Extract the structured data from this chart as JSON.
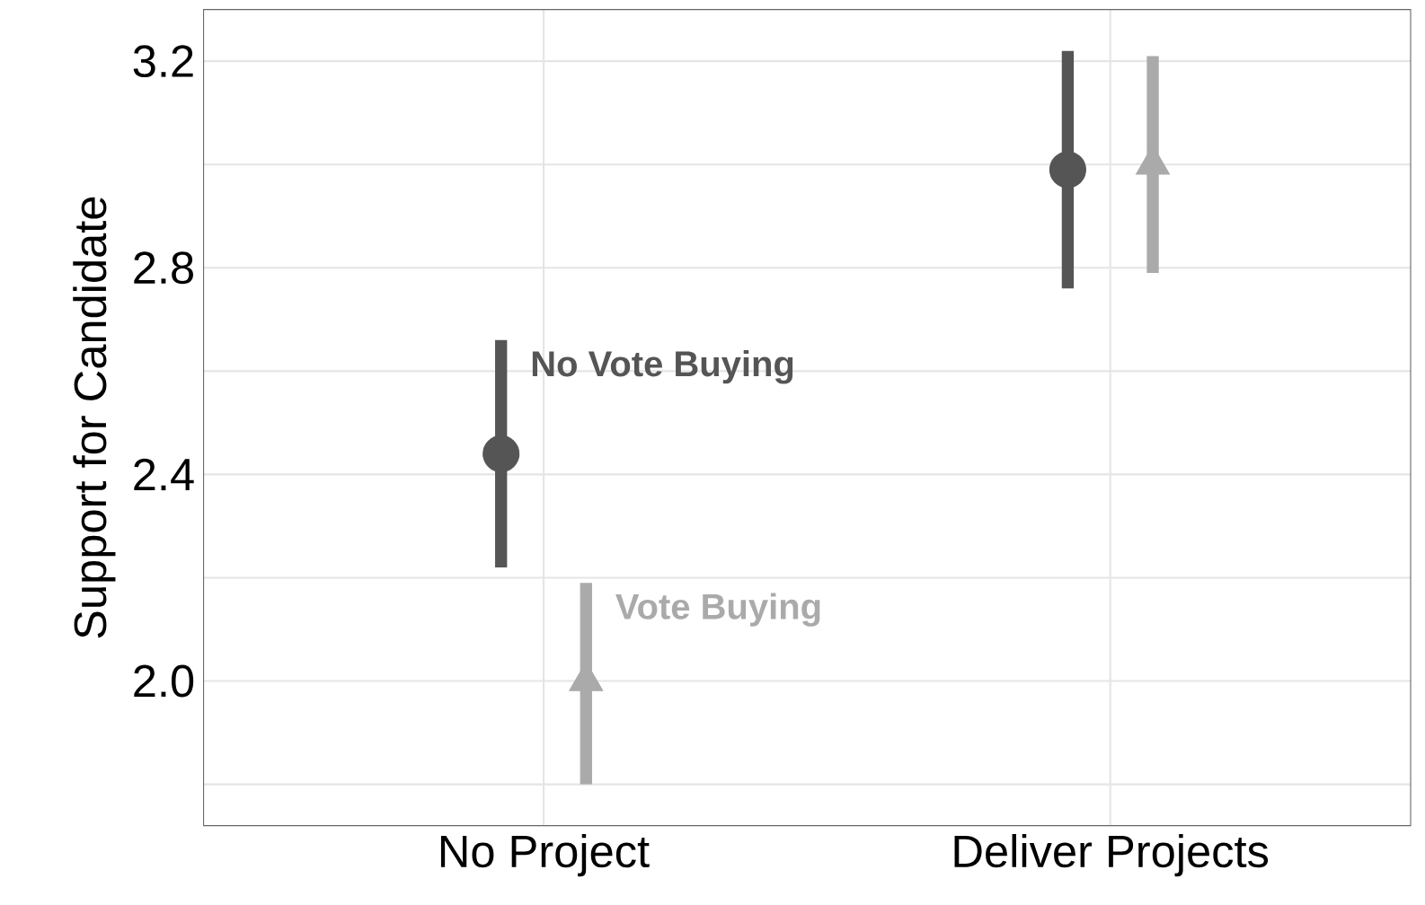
{
  "chart_data": {
    "type": "scatter",
    "ylabel": "Support for Candidate",
    "categories": [
      "No Project",
      "Deliver Projects"
    ],
    "series": [
      {
        "name": "No Vote Buying",
        "color": "#555555",
        "marker": "circle",
        "values": [
          2.44,
          2.99
        ],
        "errors": [
          [
            2.22,
            2.66
          ],
          [
            2.76,
            3.22
          ]
        ]
      },
      {
        "name": "Vote Buying",
        "color": "#aaaaaa",
        "marker": "triangle",
        "values": [
          2.0,
          3.0
        ],
        "errors": [
          [
            1.8,
            2.19
          ],
          [
            2.79,
            3.21
          ]
        ]
      }
    ],
    "ylim": [
      1.72,
      3.3
    ],
    "yticks": [
      {
        "value": 1.8,
        "label": null
      },
      {
        "value": 2,
        "label": "2.0"
      },
      {
        "value": 2.2,
        "label": null
      },
      2.4,
      {
        "value": 2.6,
        "label": null
      },
      2.8,
      {
        "value": 3.0,
        "label": null
      },
      3.2
    ],
    "grid": true
  }
}
